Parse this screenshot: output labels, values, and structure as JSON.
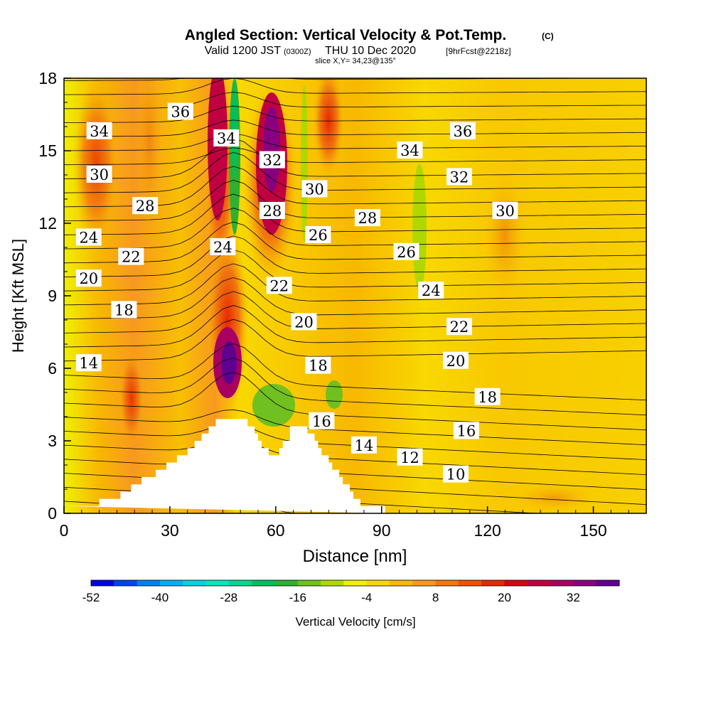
{
  "chart_data": {
    "type": "heatmap",
    "title": "Angled Section: Vertical Velocity & Pot.Temp.",
    "title_suffix": "(C)",
    "subtitle_a": "Valid 1200 JST",
    "subtitle_b": "(0300Z)",
    "subtitle_c": "THU 10 Dec 2020",
    "subtitle_d": "[9hrFcst@2218z]",
    "slice_text": "slice X,Y= 34,23@135°",
    "xlabel": "Distance [nm]",
    "ylabel": "Height [Kft MSL]",
    "xlim": [
      0,
      165
    ],
    "ylim": [
      0,
      18
    ],
    "xticks": [
      "0",
      "30",
      "60",
      "90",
      "120",
      "150"
    ],
    "yticks": [
      "0",
      "3",
      "6",
      "9",
      "12",
      "15",
      "18"
    ],
    "colorbar": {
      "label": "Vertical Velocity [cm/s]",
      "ticks": [
        "-52",
        "-40",
        "-28",
        "-16",
        "-4",
        "8",
        "20",
        "32"
      ],
      "colors": [
        "#0000e6",
        "#0044f0",
        "#0080f0",
        "#00b0f0",
        "#00d4e0",
        "#00e8c0",
        "#00d890",
        "#00c060",
        "#30b030",
        "#70c020",
        "#b0d800",
        "#f0f000",
        "#f8d800",
        "#f8b800",
        "#f89820",
        "#f07810",
        "#f05000",
        "#e82800",
        "#d80010",
        "#c00040",
        "#a80060",
        "#880080",
        "#600090"
      ]
    },
    "potential_temperature_labels": [
      {
        "value": "36",
        "x": 33,
        "y": 16.6
      },
      {
        "value": "34",
        "x": 10,
        "y": 15.8
      },
      {
        "value": "34",
        "x": 46,
        "y": 15.5
      },
      {
        "value": "30",
        "x": 10,
        "y": 14.0
      },
      {
        "value": "28",
        "x": 23,
        "y": 12.7
      },
      {
        "value": "24",
        "x": 7,
        "y": 11.4
      },
      {
        "value": "20",
        "x": 7,
        "y": 9.7
      },
      {
        "value": "22",
        "x": 19,
        "y": 10.6
      },
      {
        "value": "18",
        "x": 17,
        "y": 8.4
      },
      {
        "value": "14",
        "x": 7,
        "y": 6.2
      },
      {
        "value": "24",
        "x": 45,
        "y": 11.0
      },
      {
        "value": "32",
        "x": 59,
        "y": 14.6
      },
      {
        "value": "28",
        "x": 59,
        "y": 12.5
      },
      {
        "value": "22",
        "x": 61,
        "y": 9.4
      },
      {
        "value": "30",
        "x": 71,
        "y": 13.4
      },
      {
        "value": "26",
        "x": 72,
        "y": 11.5
      },
      {
        "value": "20",
        "x": 68,
        "y": 7.9
      },
      {
        "value": "18",
        "x": 72,
        "y": 6.1
      },
      {
        "value": "16",
        "x": 73,
        "y": 3.8
      },
      {
        "value": "14",
        "x": 85,
        "y": 2.8
      },
      {
        "value": "12",
        "x": 98,
        "y": 2.3
      },
      {
        "value": "10",
        "x": 111,
        "y": 1.6
      },
      {
        "value": "16",
        "x": 114,
        "y": 3.4
      },
      {
        "value": "18",
        "x": 120,
        "y": 4.8
      },
      {
        "value": "20",
        "x": 111,
        "y": 6.3
      },
      {
        "value": "22",
        "x": 112,
        "y": 7.7
      },
      {
        "value": "24",
        "x": 104,
        "y": 9.2
      },
      {
        "value": "26",
        "x": 97,
        "y": 10.8
      },
      {
        "value": "28",
        "x": 86,
        "y": 12.2
      },
      {
        "value": "30",
        "x": 125,
        "y": 12.5
      },
      {
        "value": "32",
        "x": 112,
        "y": 13.9
      },
      {
        "value": "34",
        "x": 98,
        "y": 15.0
      },
      {
        "value": "36",
        "x": 113,
        "y": 15.8
      }
    ],
    "terrain_profile": [
      [
        0,
        0.3
      ],
      [
        10,
        0.3
      ],
      [
        10,
        0.6
      ],
      [
        16,
        0.6
      ],
      [
        16,
        0.9
      ],
      [
        19,
        0.9
      ],
      [
        19,
        1.2
      ],
      [
        22,
        1.2
      ],
      [
        22,
        1.5
      ],
      [
        26,
        1.5
      ],
      [
        26,
        1.8
      ],
      [
        29,
        1.8
      ],
      [
        29,
        2.1
      ],
      [
        32,
        2.1
      ],
      [
        32,
        2.4
      ],
      [
        35,
        2.4
      ],
      [
        35,
        2.7
      ],
      [
        37,
        2.7
      ],
      [
        37,
        3.0
      ],
      [
        39,
        3.0
      ],
      [
        39,
        3.3
      ],
      [
        41,
        3.3
      ],
      [
        41,
        3.6
      ],
      [
        43,
        3.6
      ],
      [
        43,
        3.9
      ],
      [
        52,
        3.9
      ],
      [
        52,
        3.6
      ],
      [
        54,
        3.6
      ],
      [
        54,
        3.3
      ],
      [
        55,
        3.3
      ],
      [
        55,
        3.0
      ],
      [
        56,
        3.0
      ],
      [
        56,
        2.7
      ],
      [
        58,
        2.7
      ],
      [
        58,
        2.4
      ],
      [
        61,
        2.4
      ],
      [
        61,
        2.7
      ],
      [
        62,
        2.7
      ],
      [
        62,
        3.0
      ],
      [
        64,
        3.0
      ],
      [
        64,
        3.6
      ],
      [
        69,
        3.6
      ],
      [
        69,
        3.3
      ],
      [
        71,
        3.3
      ],
      [
        71,
        3.0
      ],
      [
        72,
        3.0
      ],
      [
        72,
        2.7
      ],
      [
        73,
        2.7
      ],
      [
        73,
        2.4
      ],
      [
        75,
        2.4
      ],
      [
        75,
        2.1
      ],
      [
        76,
        2.1
      ],
      [
        76,
        1.8
      ],
      [
        78,
        1.8
      ],
      [
        78,
        1.5
      ],
      [
        79,
        1.5
      ],
      [
        79,
        1.2
      ],
      [
        81,
        1.2
      ],
      [
        81,
        0.9
      ],
      [
        82,
        0.9
      ],
      [
        82,
        0.6
      ],
      [
        84,
        0.6
      ],
      [
        84,
        0.3
      ],
      [
        91,
        0.3
      ],
      [
        91,
        0
      ]
    ]
  }
}
